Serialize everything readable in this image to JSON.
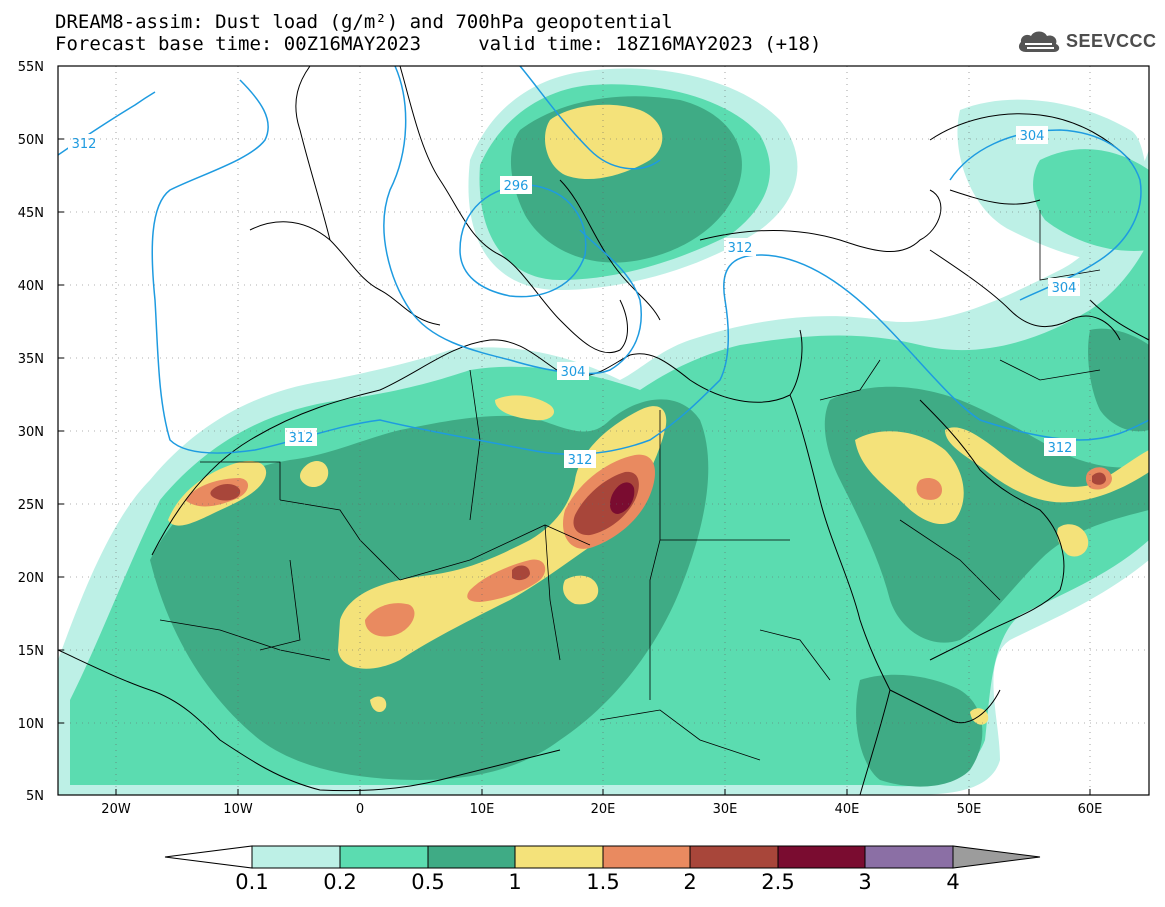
{
  "title": {
    "line1": "DREAM8-assim: Dust load (g/m²) and 700hPa geopotential",
    "line2": "Forecast base time: 00Z16MAY2023     valid time: 18Z16MAY2023 (+18)"
  },
  "logo": {
    "icon": "cloud-icon",
    "text": "SEEVCCC"
  },
  "axes": {
    "lat_labels": [
      "55N",
      "50N",
      "45N",
      "40N",
      "35N",
      "30N",
      "25N",
      "20N",
      "15N",
      "10N",
      "5N"
    ],
    "lon_labels": [
      "20W",
      "10W",
      "0",
      "10E",
      "20E",
      "30E",
      "40E",
      "50E",
      "60E"
    ]
  },
  "contours": {
    "labels": [
      {
        "id": "c312a",
        "text": "312"
      },
      {
        "id": "c296",
        "text": "296"
      },
      {
        "id": "c304a",
        "text": "304"
      },
      {
        "id": "c312b",
        "text": "312"
      },
      {
        "id": "c312c",
        "text": "312"
      },
      {
        "id": "c312d",
        "text": "312"
      },
      {
        "id": "c304b",
        "text": "304"
      },
      {
        "id": "c304c",
        "text": "304"
      },
      {
        "id": "c312e",
        "text": "312"
      }
    ]
  },
  "colorbar": {
    "labels": [
      "0.1",
      "0.2",
      "0.5",
      "1",
      "1.5",
      "2",
      "2.5",
      "3",
      "4"
    ],
    "colors": [
      "#ffffff",
      "#b7efe2",
      "#5ade b0",
      "#42ad86",
      "#f5e478",
      "#e9885c",
      "#a94335",
      "#7a0c30",
      "#8b6fa5",
      "#9c9c9c"
    ]
  },
  "colors": {
    "lvl1": "#bdf0e6",
    "lvl2": "#5bdcb0",
    "lvl3": "#3fab85",
    "lvl4": "#f4e27a",
    "lvl5": "#e98a60",
    "lvl6": "#a8463a",
    "lvl7": "#7a0c30",
    "contour": "#1e9be0"
  }
}
